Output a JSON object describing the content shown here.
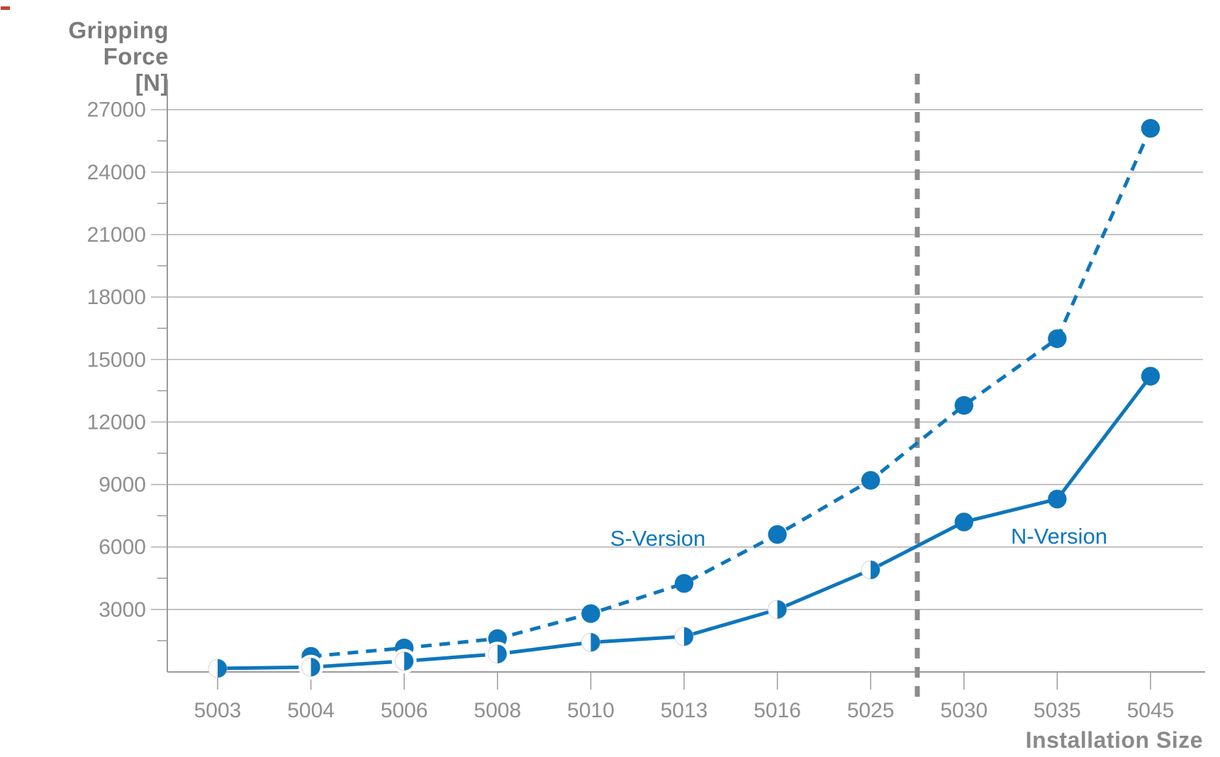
{
  "corner_mark": {
    "color": "#c24632"
  },
  "chart_data": {
    "type": "line",
    "title_lines": [
      "Gripping Force",
      "[N]"
    ],
    "xlabel": "Installation Size",
    "categories": [
      "5003",
      "5004",
      "5006",
      "5008",
      "5010",
      "5013",
      "5016",
      "5025",
      "5030",
      "5035",
      "5045"
    ],
    "y_ticks": [
      3000,
      6000,
      9000,
      12000,
      15000,
      18000,
      21000,
      24000,
      27000
    ],
    "y_minor_step": 1500,
    "ylim": [
      0,
      28400
    ],
    "grid": true,
    "legend_position": "inline-annotations",
    "separator": {
      "between": [
        "5025",
        "5030"
      ],
      "orientation": "vertical",
      "style": "dashed"
    },
    "series": [
      {
        "name": "S-Version",
        "line": "dashed",
        "color": "#0e76bc",
        "marker_styles": [
          null,
          "full",
          "full",
          "full",
          "full",
          "full",
          "full",
          "full",
          "full",
          "full",
          "full"
        ],
        "values": [
          null,
          750,
          1150,
          1600,
          2800,
          4250,
          6600,
          9200,
          12800,
          16000,
          26100
        ]
      },
      {
        "name": "N-Version",
        "line": "solid",
        "color": "#0e76bc",
        "marker_styles": [
          "half",
          "half",
          "half",
          "half",
          "half",
          "half",
          "half",
          "half",
          "full",
          "full",
          "full"
        ],
        "values": [
          170,
          230,
          520,
          860,
          1420,
          1700,
          3000,
          4900,
          7200,
          8300,
          14200
        ]
      }
    ],
    "annotations": [
      {
        "text": "S-Version",
        "color": "#0d77bd"
      },
      {
        "text": "N-Version",
        "color": "#0d77bd"
      }
    ],
    "colors": {
      "accent_blue": "#0e76bc",
      "gridline": "#b5b5b5",
      "axis": "#9b9b9b",
      "tick_label": "#8f8f8f",
      "title": "#7b7b7b",
      "separator": "#8c8c8c"
    }
  }
}
